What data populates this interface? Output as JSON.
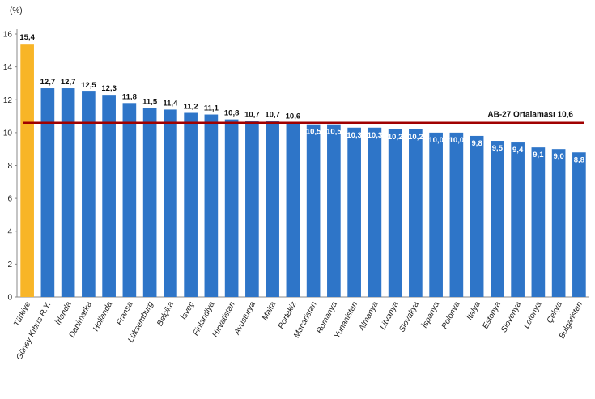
{
  "chart_data": {
    "type": "bar",
    "unit_label": "(%)",
    "categories": [
      "Türkiye",
      "Güney Kıbrıs R.Y.",
      "İrlanda",
      "Danimarka",
      "Hollanda",
      "Fransa",
      "Lüksemburg",
      "Belçika",
      "İsveç",
      "Finlandiya",
      "Hırvatistan",
      "Avusturya",
      "Malta",
      "Portekiz",
      "Macaristan",
      "Romanya",
      "Yunanistan",
      "Almanya",
      "Litvanya",
      "Slovakya",
      "İspanya",
      "Polonya",
      "İtalya",
      "Estonya",
      "Slovenya",
      "Letonya",
      "Çekya",
      "Bulgaristan"
    ],
    "values": [
      15.4,
      12.7,
      12.7,
      12.5,
      12.3,
      11.8,
      11.5,
      11.4,
      11.2,
      11.1,
      10.8,
      10.7,
      10.7,
      10.6,
      10.5,
      10.5,
      10.3,
      10.3,
      10.2,
      10.2,
      10.0,
      10.0,
      9.8,
      9.5,
      9.4,
      9.1,
      9.0,
      8.8
    ],
    "value_labels": [
      "15,4",
      "12,7",
      "12,7",
      "12,5",
      "12,3",
      "11,8",
      "11,5",
      "11,4",
      "11,2",
      "11,1",
      "10,8",
      "10,7",
      "10,7",
      "10,6",
      "10,5",
      "10,5",
      "10,3",
      "10,3",
      "10,2",
      "10,2",
      "10,0",
      "10,0",
      "9,8",
      "9,5",
      "9,4",
      "9,1",
      "9,0",
      "8,8"
    ],
    "labels_inside_from_index": 14,
    "highlight_index": 0,
    "colors": {
      "bar": "#2E75C8",
      "highlight": "#F8B527",
      "average_line": "#A00000",
      "label_outside": "#111111",
      "label_inside": "#ffffff"
    },
    "ylim": [
      0,
      16
    ],
    "yticks": [
      0,
      2,
      4,
      6,
      8,
      10,
      12,
      14,
      16
    ],
    "average": {
      "value": 10.6,
      "label": "AB-27 Ortalaması 10,6"
    },
    "grid": false
  }
}
